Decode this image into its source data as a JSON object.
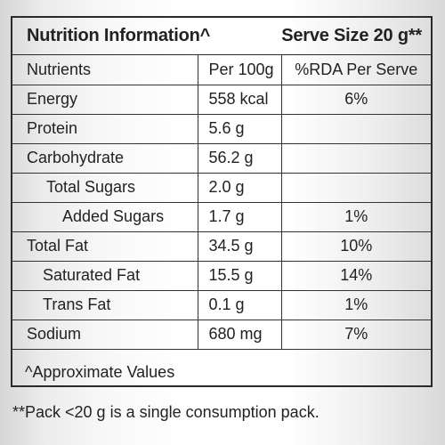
{
  "header": {
    "title": "Nutrition Information^",
    "serve_size": "Serve Size 20 g**"
  },
  "table": {
    "columns": [
      "Nutrients",
      "Per 100g",
      "%RDA Per Serve"
    ],
    "rows": [
      {
        "name": "Energy",
        "per100": "558 kcal",
        "rda": "6%"
      },
      {
        "name": "Protein",
        "per100": "5.6 g",
        "rda": ""
      },
      {
        "name": "Carbohydrate",
        "per100": "56.2 g",
        "rda": ""
      },
      {
        "name": "Total Sugars",
        "per100": "2.0 g",
        "rda": ""
      },
      {
        "name": "Added Sugars",
        "per100": "1.7 g",
        "rda": "1%"
      },
      {
        "name": "Total Fat",
        "per100": "34.5 g",
        "rda": "10%"
      },
      {
        "name": "Saturated Fat",
        "per100": "15.5 g",
        "rda": "14%"
      },
      {
        "name": "Trans Fat",
        "per100": "0.1 g",
        "rda": "1%"
      },
      {
        "name": "Sodium",
        "per100": "680 mg",
        "rda": "7%"
      }
    ]
  },
  "footer": {
    "approx_note": "^Approximate Values",
    "pack_note": "**Pack <20 g is a single consumption pack."
  }
}
